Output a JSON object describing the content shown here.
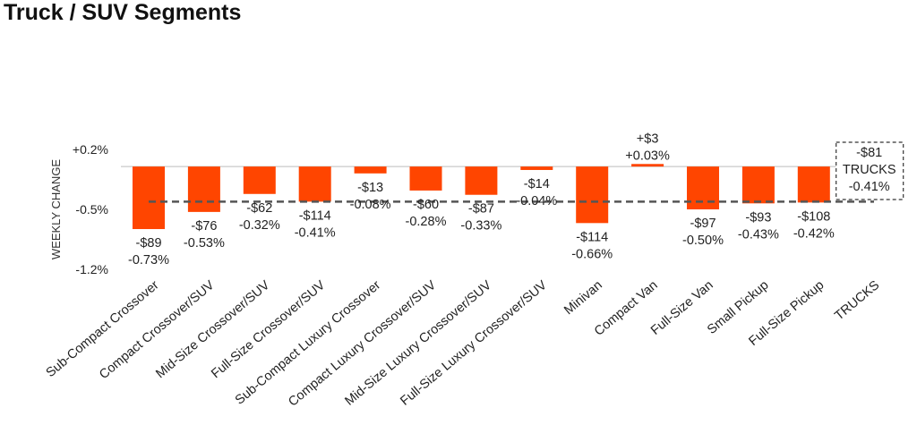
{
  "title": "Truck / SUV Segments",
  "chart_data": {
    "type": "bar",
    "ylabel": "WEEKLY CHANGE",
    "ylim": [
      -1.2,
      0.2
    ],
    "yticks": [
      0.2,
      -0.5,
      -1.2
    ],
    "ytick_labels": [
      "+0.2%",
      "-0.5%",
      "-1.2%"
    ],
    "reference_line": -0.41,
    "categories": [
      "Sub-Compact Crossover",
      "Compact Crossover/SUV",
      "Mid-Size Crossover/SUV",
      "Full-Size Crossover/SUV",
      "Sub-Compact Luxury Crossover",
      "Compact Luxury Crossover/SUV",
      "Mid-Size Luxury Crossover/SUV",
      "Full-Size Luxury Crossover/SUV",
      "Minivan",
      "Compact Van",
      "Full-Size Van",
      "Small Pickup",
      "Full-Size Pickup",
      "TRUCKS"
    ],
    "values": [
      -0.73,
      -0.53,
      -0.32,
      -0.41,
      -0.08,
      -0.28,
      -0.33,
      -0.04,
      -0.66,
      0.03,
      -0.5,
      -0.43,
      -0.42,
      -0.41
    ],
    "dollar_labels": [
      "-$89",
      "-$76",
      "-$62",
      "-$114",
      "-$13",
      "-$60",
      "-$87",
      "-$14",
      "-$114",
      "+$3",
      "-$97",
      "-$93",
      "-$108",
      "-$81"
    ],
    "pct_labels": [
      "-0.73%",
      "-0.53%",
      "-0.32%",
      "-0.41%",
      "-0.08%",
      "-0.28%",
      "-0.33%",
      "-0.04%",
      "-0.66%",
      "+0.03%",
      "-0.50%",
      "-0.43%",
      "-0.42%",
      "-0.41%"
    ],
    "summary_label": "TRUCKS",
    "bar_color": "#ff4500"
  }
}
